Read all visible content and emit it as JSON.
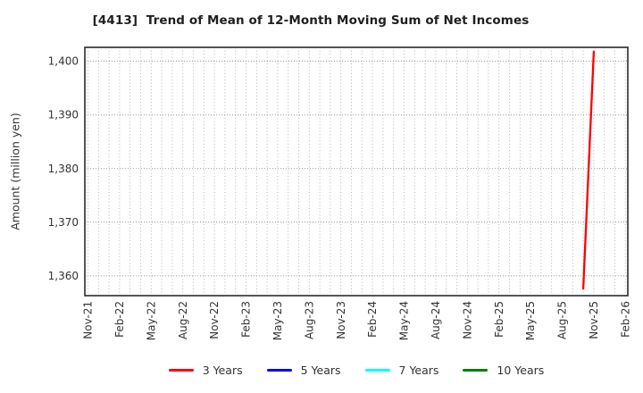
{
  "figure": {
    "background_color": "#ffffff",
    "text_color": "#333333",
    "grid_color": "#a3a3a3",
    "border_color": "#2b2b2b"
  },
  "chart_data": {
    "type": "line",
    "title": "[4413]  Trend of Mean of 12-Month Moving Sum of Net Incomes",
    "ylabel": "Amount (million yen)",
    "xlabel": "",
    "grid": true,
    "legend_position": "bottom",
    "x_tick_labels": [
      "Nov-21",
      "Feb-22",
      "May-22",
      "Aug-22",
      "Nov-22",
      "Feb-23",
      "May-23",
      "Aug-23",
      "Nov-23",
      "Feb-24",
      "May-24",
      "Aug-24",
      "Nov-24",
      "Feb-25",
      "May-25",
      "Aug-25",
      "Nov-25",
      "Feb-26"
    ],
    "months_per_major_tick": 3,
    "total_months": 51,
    "yticks": [
      1360,
      1370,
      1380,
      1390,
      1400
    ],
    "ytick_labels": [
      "1,360",
      "1,370",
      "1,380",
      "1,390",
      "1,400"
    ],
    "ylim": [
      1356.3,
      1402.6
    ],
    "series": [
      {
        "name": "3 Years",
        "color": "#ff0000",
        "points": [
          {
            "month_index": 47,
            "x_label": "Oct-25",
            "value": 1357.6
          },
          {
            "month_index": 48,
            "x_label": "Nov-25",
            "value": 1401.8
          }
        ]
      },
      {
        "name": "5 Years",
        "color": "#0000ff",
        "points": []
      },
      {
        "name": "7 Years",
        "color": "#00ffff",
        "points": []
      },
      {
        "name": "10 Years",
        "color": "#008000",
        "points": []
      }
    ]
  }
}
